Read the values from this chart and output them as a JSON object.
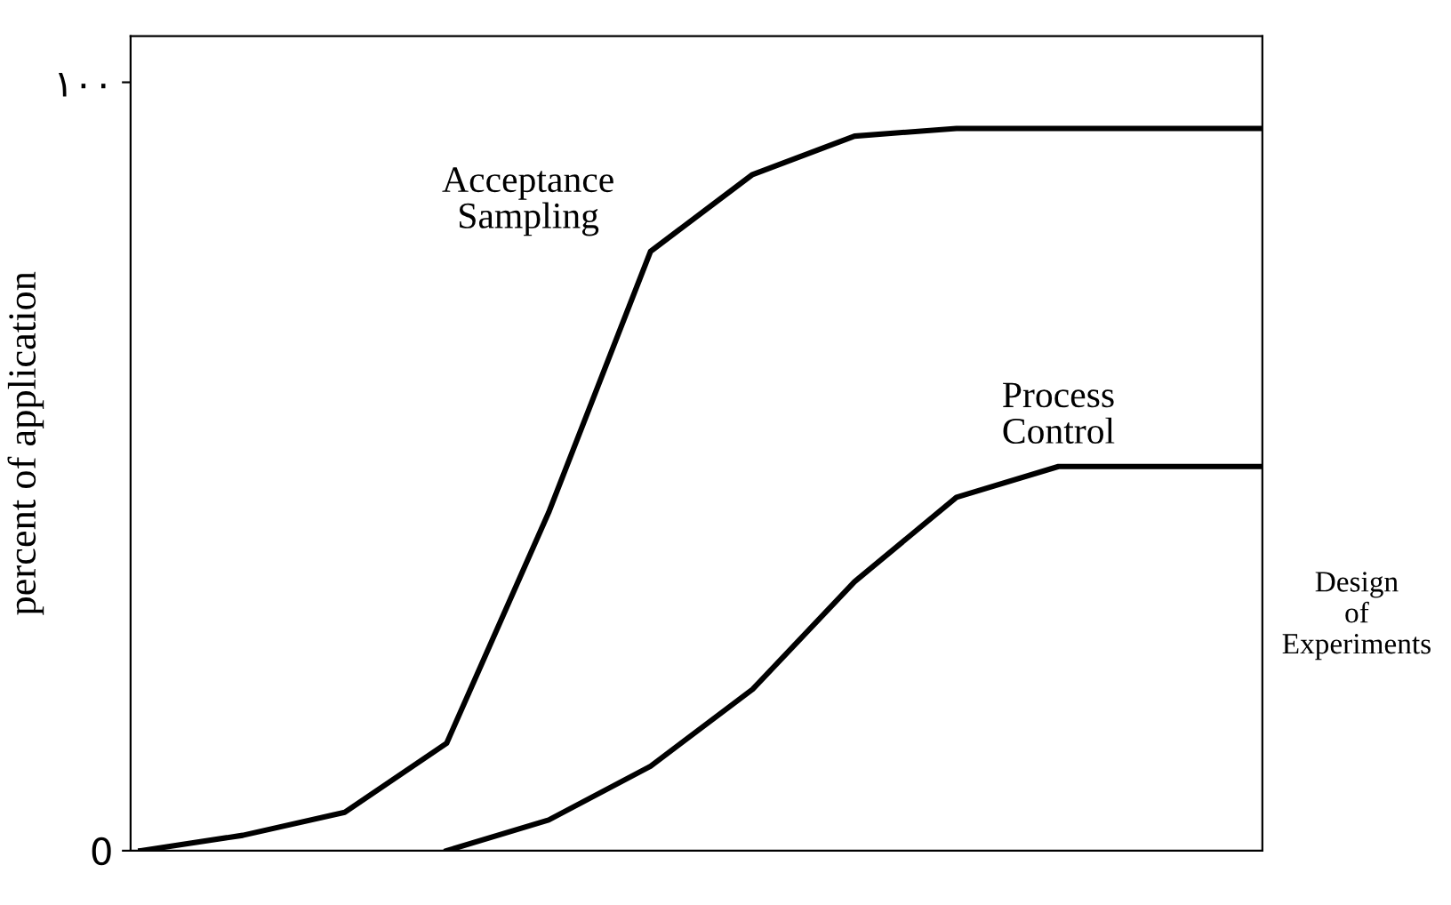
{
  "chart_data": {
    "type": "line",
    "ylabel": "percent of application",
    "categories": [
      null,
      null,
      null,
      null,
      null,
      null,
      null,
      null,
      null,
      null,
      null,
      null
    ],
    "series": [
      {
        "name": "Acceptance Sampling",
        "color": "#000000",
        "values": [
          0,
          2,
          5,
          14,
          44,
          78,
          88,
          93,
          94,
          94,
          94,
          94
        ]
      },
      {
        "name": "Process Control",
        "color": "#000000",
        "values": [
          null,
          null,
          null,
          0,
          4,
          11,
          21,
          35,
          46,
          50,
          50,
          50
        ]
      }
    ],
    "ylim": [
      0,
      106
    ],
    "yticks": [
      0,
      {
        "value": 100,
        "label": "١٠٠"
      }
    ],
    "annotations": [
      "Design\nof\nExperiments"
    ],
    "grid": false,
    "marker": "none",
    "line_style": "solid"
  }
}
